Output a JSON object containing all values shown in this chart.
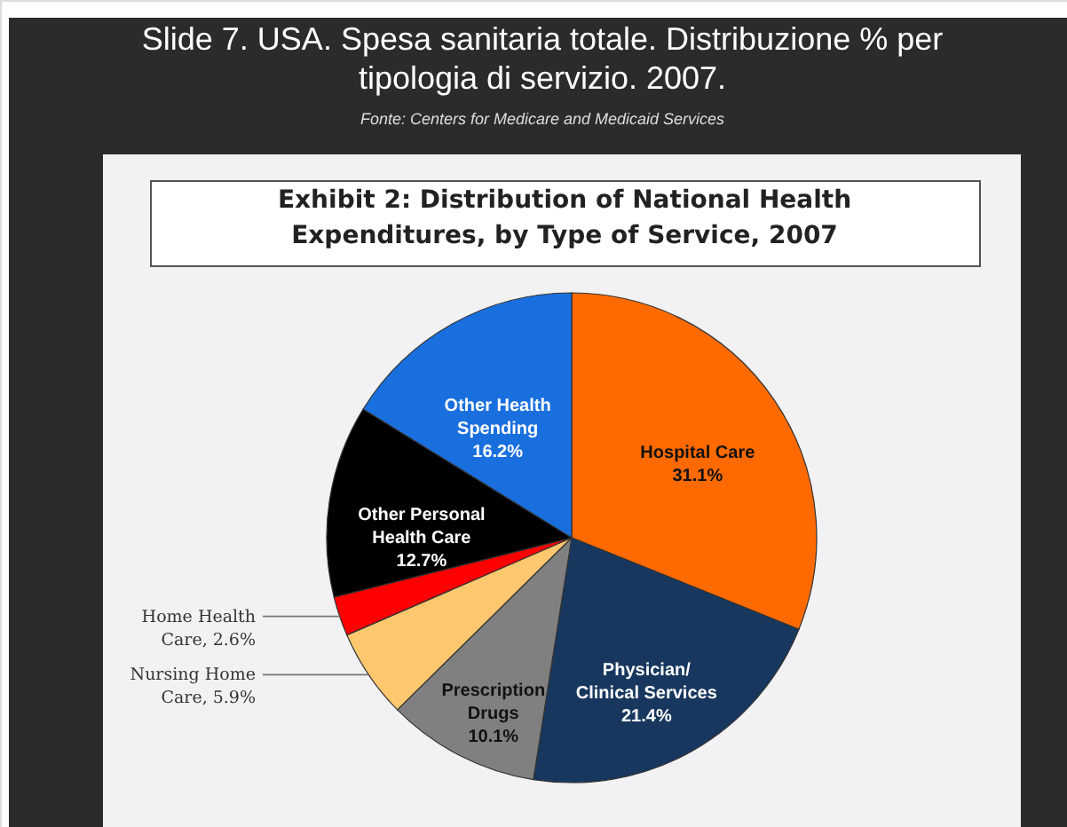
{
  "chart_data": {
    "type": "pie",
    "title": "Slide 7. USA. Spesa sanitaria totale. Distribuzione % per tipologia di servizio. 2007.",
    "subtitle": "Fonte: Centers for Medicare and Medicaid Services",
    "annotations": [
      "Exhibit 2: Distribution of National Health Expenditures, by Type of Service, 2007"
    ],
    "categories": [
      "Hospital Care",
      "Physician/ Clinical Services",
      "Prescription Drugs",
      "Nursing Home Care",
      "Home Health Care",
      "Other Personal Health Care",
      "Other Health Spending"
    ],
    "values": [
      31.1,
      21.4,
      10.1,
      5.9,
      2.6,
      12.7,
      16.2
    ],
    "value_labels": [
      "31.1%",
      "21.4%",
      "10.1%",
      "5.9%",
      "2.6%",
      "12.7%",
      "16.2%"
    ],
    "colors": [
      "#ff6a00",
      "#17375e",
      "#808080",
      "#ffc76e",
      "#ff0000",
      "#000000",
      "#1a6fdf"
    ]
  }
}
